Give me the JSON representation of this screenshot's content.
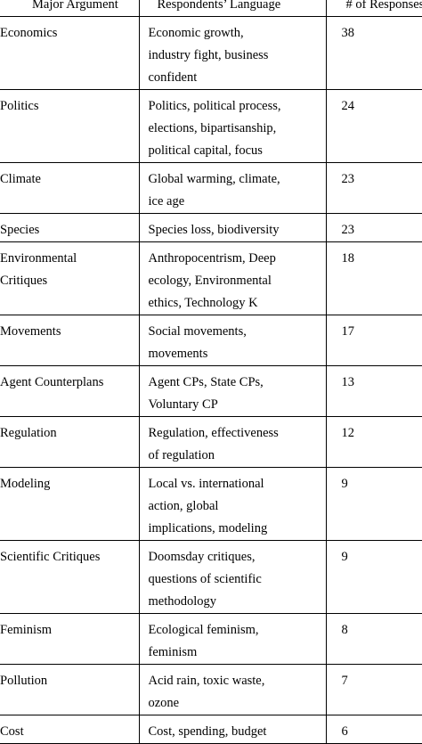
{
  "headers": {
    "argument": "Major Argument",
    "language": "Respondents’ Language",
    "responses": "# of Responses"
  },
  "rows": [
    {
      "argument": [
        "Economics"
      ],
      "language": [
        "Economic growth,",
        "industry fight, business",
        "confident"
      ],
      "responses": "38"
    },
    {
      "argument": [
        "Politics"
      ],
      "language": [
        "Politics, political process,",
        "elections, bipartisanship,",
        "political capital, focus"
      ],
      "responses": "24"
    },
    {
      "argument": [
        "Climate"
      ],
      "language": [
        "Global warming, climate,",
        "ice age"
      ],
      "responses": "23"
    },
    {
      "argument": [
        "Species"
      ],
      "language": [
        "Species loss, biodiversity"
      ],
      "responses": "23"
    },
    {
      "argument": [
        "Environmental",
        "Critiques"
      ],
      "language": [
        "Anthropocentrism, Deep",
        "ecology, Environmental",
        "ethics, Technology K"
      ],
      "responses": "18"
    },
    {
      "argument": [
        "Movements"
      ],
      "language": [
        "Social movements,",
        "movements"
      ],
      "responses": "17"
    },
    {
      "argument": [
        "Agent Counterplans"
      ],
      "language": [
        "Agent CPs, State CPs,",
        "Voluntary CP"
      ],
      "responses": "13"
    },
    {
      "argument": [
        "Regulation"
      ],
      "language": [
        "Regulation, effectiveness",
        "of regulation"
      ],
      "responses": "12"
    },
    {
      "argument": [
        "Modeling"
      ],
      "language": [
        "Local vs. international",
        "action, global",
        "implications, modeling"
      ],
      "responses": "9"
    },
    {
      "argument": [
        "Scientific Critiques"
      ],
      "language": [
        "Doomsday critiques,",
        "questions of scientific",
        "methodology"
      ],
      "responses": "9"
    },
    {
      "argument": [
        "Feminism"
      ],
      "language": [
        "Ecological feminism,",
        "feminism"
      ],
      "responses": "8"
    },
    {
      "argument": [
        "Pollution"
      ],
      "language": [
        "Acid rain, toxic waste,",
        "ozone"
      ],
      "responses": "7"
    },
    {
      "argument": [
        "Cost"
      ],
      "language": [
        "Cost, spending, budget"
      ],
      "responses": "6"
    }
  ]
}
